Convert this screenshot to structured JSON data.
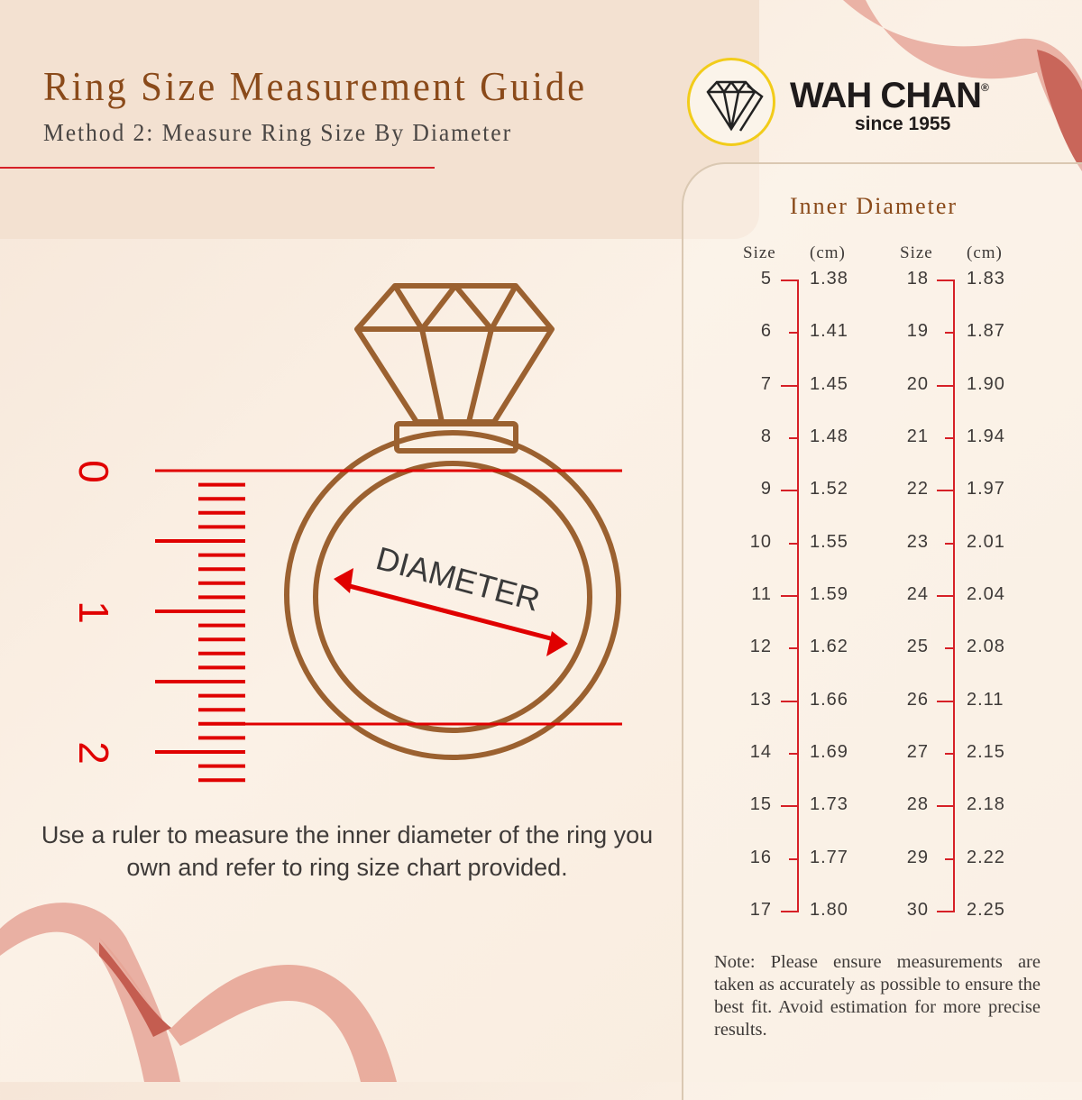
{
  "header": {
    "title": "Ring Size Measurement Guide",
    "subtitle": "Method 2: Measure Ring Size By Diameter"
  },
  "logo": {
    "brand": "WAH CHAN",
    "registered": "®",
    "since": "since 1955",
    "icon": "diamond-icon",
    "ring_color": "#f2cc1a"
  },
  "illustration": {
    "ruler_labels": [
      "0",
      "1",
      "2"
    ],
    "diameter_label": "DIAMETER",
    "ring_color": "#9b6130",
    "accent": "#e00000"
  },
  "instruction": "Use a ruler to measure the inner diameter of the ring you own and refer to ring size chart provided.",
  "chart": {
    "title": "Inner Diameter",
    "headers": {
      "size": "Size",
      "cm": "(cm)"
    },
    "columns": [
      {
        "rows": [
          [
            "5",
            "1.38"
          ],
          [
            "6",
            "1.41"
          ],
          [
            "7",
            "1.45"
          ],
          [
            "8",
            "1.48"
          ],
          [
            "9",
            "1.52"
          ],
          [
            "10",
            "1.55"
          ],
          [
            "11",
            "1.59"
          ],
          [
            "12",
            "1.62"
          ],
          [
            "13",
            "1.66"
          ],
          [
            "14",
            "1.69"
          ],
          [
            "15",
            "1.73"
          ],
          [
            "16",
            "1.77"
          ],
          [
            "17",
            "1.80"
          ]
        ]
      },
      {
        "rows": [
          [
            "18",
            "1.83"
          ],
          [
            "19",
            "1.87"
          ],
          [
            "20",
            "1.90"
          ],
          [
            "21",
            "1.94"
          ],
          [
            "22",
            "1.97"
          ],
          [
            "23",
            "2.01"
          ],
          [
            "24",
            "2.04"
          ],
          [
            "25",
            "2.08"
          ],
          [
            "26",
            "2.11"
          ],
          [
            "27",
            "2.15"
          ],
          [
            "28",
            "2.18"
          ],
          [
            "29",
            "2.22"
          ],
          [
            "30",
            "2.25"
          ]
        ]
      }
    ]
  },
  "note": "Note: Please ensure measurements are taken as accurately as possible to ensure the best fit. Avoid estimation for more precise results."
}
